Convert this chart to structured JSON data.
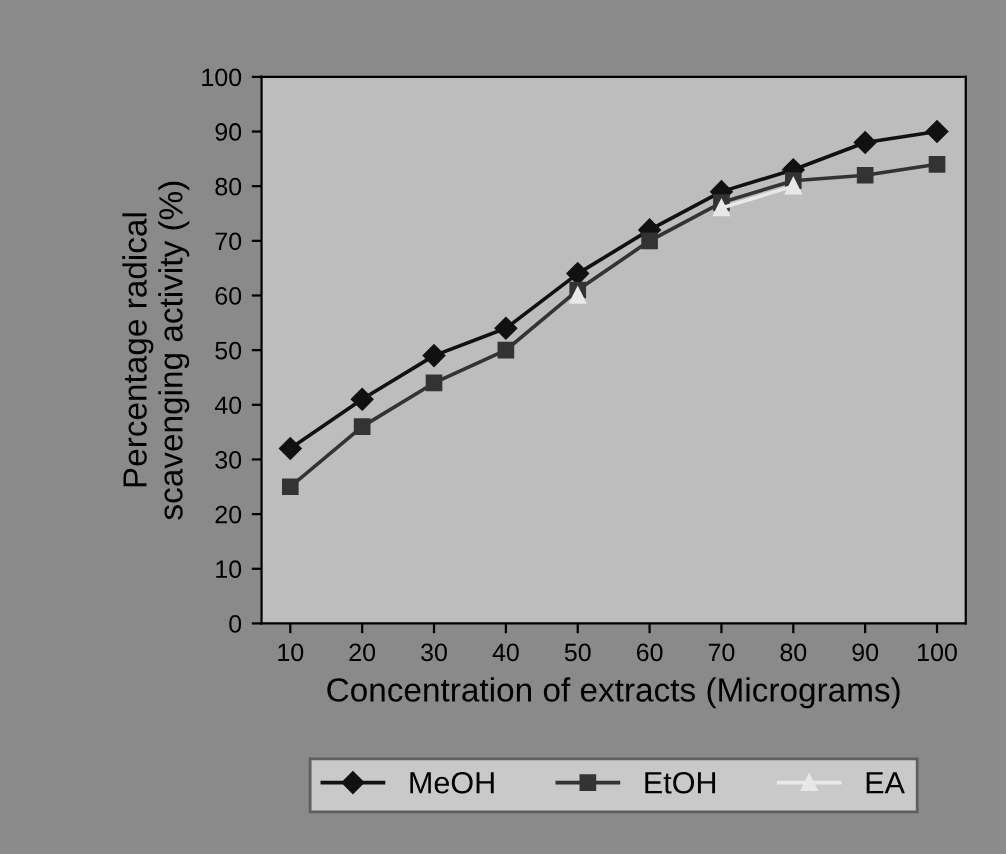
{
  "chart_data": {
    "type": "line",
    "xlabel": "Concentration of extracts (Micrograms)",
    "ylabel": "Percentage radical\nscavenging activity (%)",
    "categories": [
      "10",
      "20",
      "30",
      "40",
      "50",
      "60",
      "70",
      "80",
      "90",
      "100"
    ],
    "series": [
      {
        "name": "MeOH",
        "color": "#111111",
        "marker": "diamond",
        "values": [
          32,
          41,
          49,
          54,
          64,
          72,
          79,
          83,
          88,
          90
        ]
      },
      {
        "name": "EtOH",
        "color": "#333333",
        "marker": "square",
        "values": [
          25,
          36,
          44,
          50,
          61,
          70,
          77,
          81,
          82,
          84
        ]
      },
      {
        "name": "EA",
        "color": "#e8e8e8",
        "marker": "triangle",
        "values": [
          null,
          null,
          null,
          null,
          60,
          null,
          76,
          80,
          null,
          null
        ]
      }
    ],
    "ylim": [
      0,
      100
    ],
    "yticks": [
      0,
      10,
      20,
      30,
      40,
      50,
      60,
      70,
      80,
      90,
      100
    ],
    "grid": false,
    "legend": "bottom"
  }
}
